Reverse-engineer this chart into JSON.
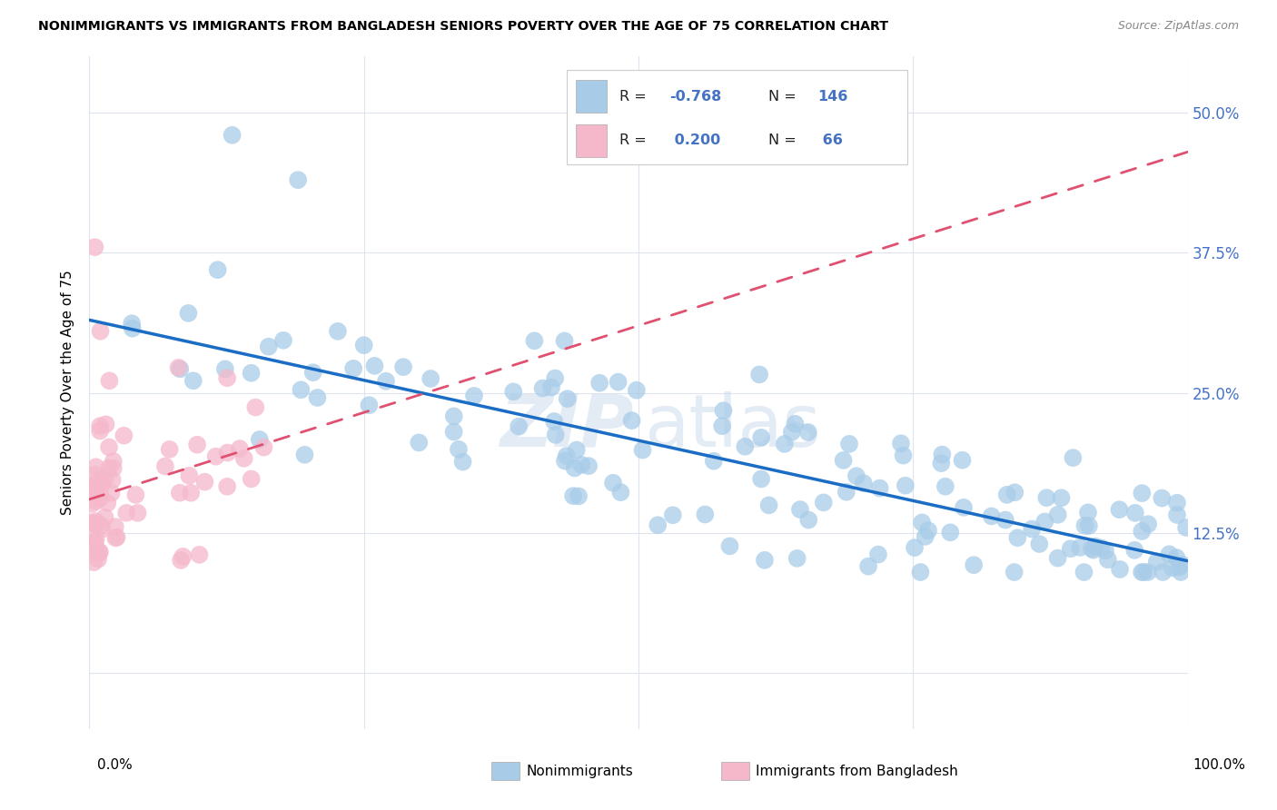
{
  "title": "NONIMMIGRANTS VS IMMIGRANTS FROM BANGLADESH SENIORS POVERTY OVER THE AGE OF 75 CORRELATION CHART",
  "source": "Source: ZipAtlas.com",
  "ylabel": "Seniors Poverty Over the Age of 75",
  "yticks": [
    0.0,
    0.125,
    0.25,
    0.375,
    0.5
  ],
  "ytick_labels": [
    "",
    "12.5%",
    "25.0%",
    "37.5%",
    "50.0%"
  ],
  "xlim": [
    0.0,
    1.0
  ],
  "ylim": [
    -0.05,
    0.55
  ],
  "blue_color": "#a8cce8",
  "pink_color": "#f5b8cb",
  "trend_blue": "#1a6cc4",
  "trend_pink": "#e05070",
  "watermark_zip": "ZIP",
  "watermark_atlas": "atlas",
  "title_fontsize": 10.5,
  "source_fontsize": 9,
  "legend_r1_val": "-0.768",
  "legend_n1_val": "146",
  "legend_r2_val": "0.200",
  "legend_n2_val": "66",
  "blue_trend_start_x": 0.0,
  "blue_trend_end_x": 1.0,
  "blue_trend_start_y": 0.315,
  "blue_trend_end_y": 0.1,
  "pink_trend_start_x": 0.0,
  "pink_trend_end_x": 1.0,
  "pink_trend_start_y": 0.155,
  "pink_trend_end_y": 0.465
}
